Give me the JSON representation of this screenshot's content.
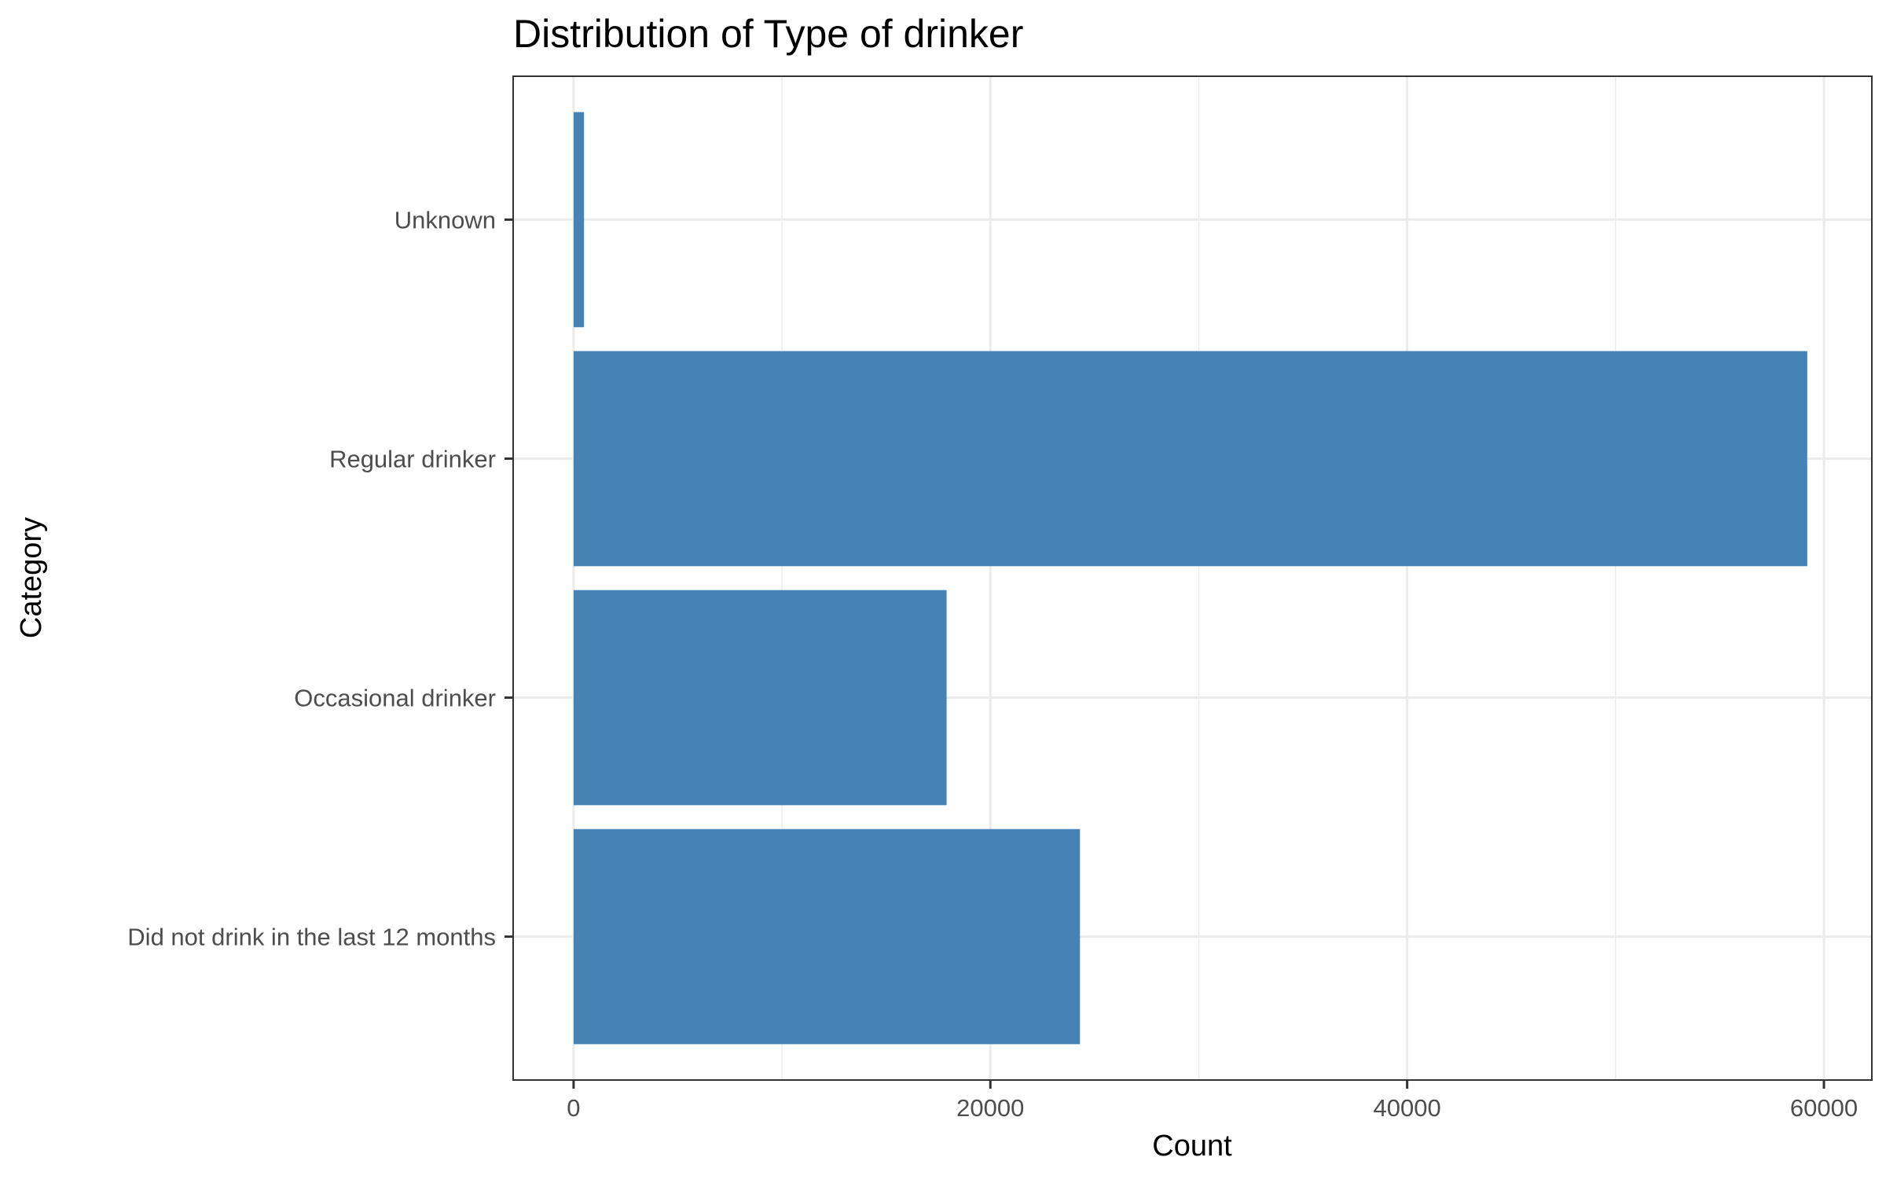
{
  "chart_data": {
    "type": "bar",
    "orientation": "horizontal",
    "title": "Distribution of Type of drinker",
    "xlabel": "Count",
    "ylabel": "Category",
    "categories": [
      "Did not drink in the last 12 months",
      "Occasional drinker",
      "Regular drinker",
      "Unknown"
    ],
    "values": [
      24300,
      17900,
      59200,
      500
    ],
    "xlim": [
      -2900,
      62300
    ],
    "xticks": [
      0,
      20000,
      40000,
      60000
    ],
    "xtick_labels": [
      "0",
      "20000",
      "40000",
      "60000"
    ],
    "grid": true,
    "legend": "none",
    "bar_color": "#4682B4",
    "panel_border_color": "#333333",
    "grid_color": "#EBEBEB"
  }
}
